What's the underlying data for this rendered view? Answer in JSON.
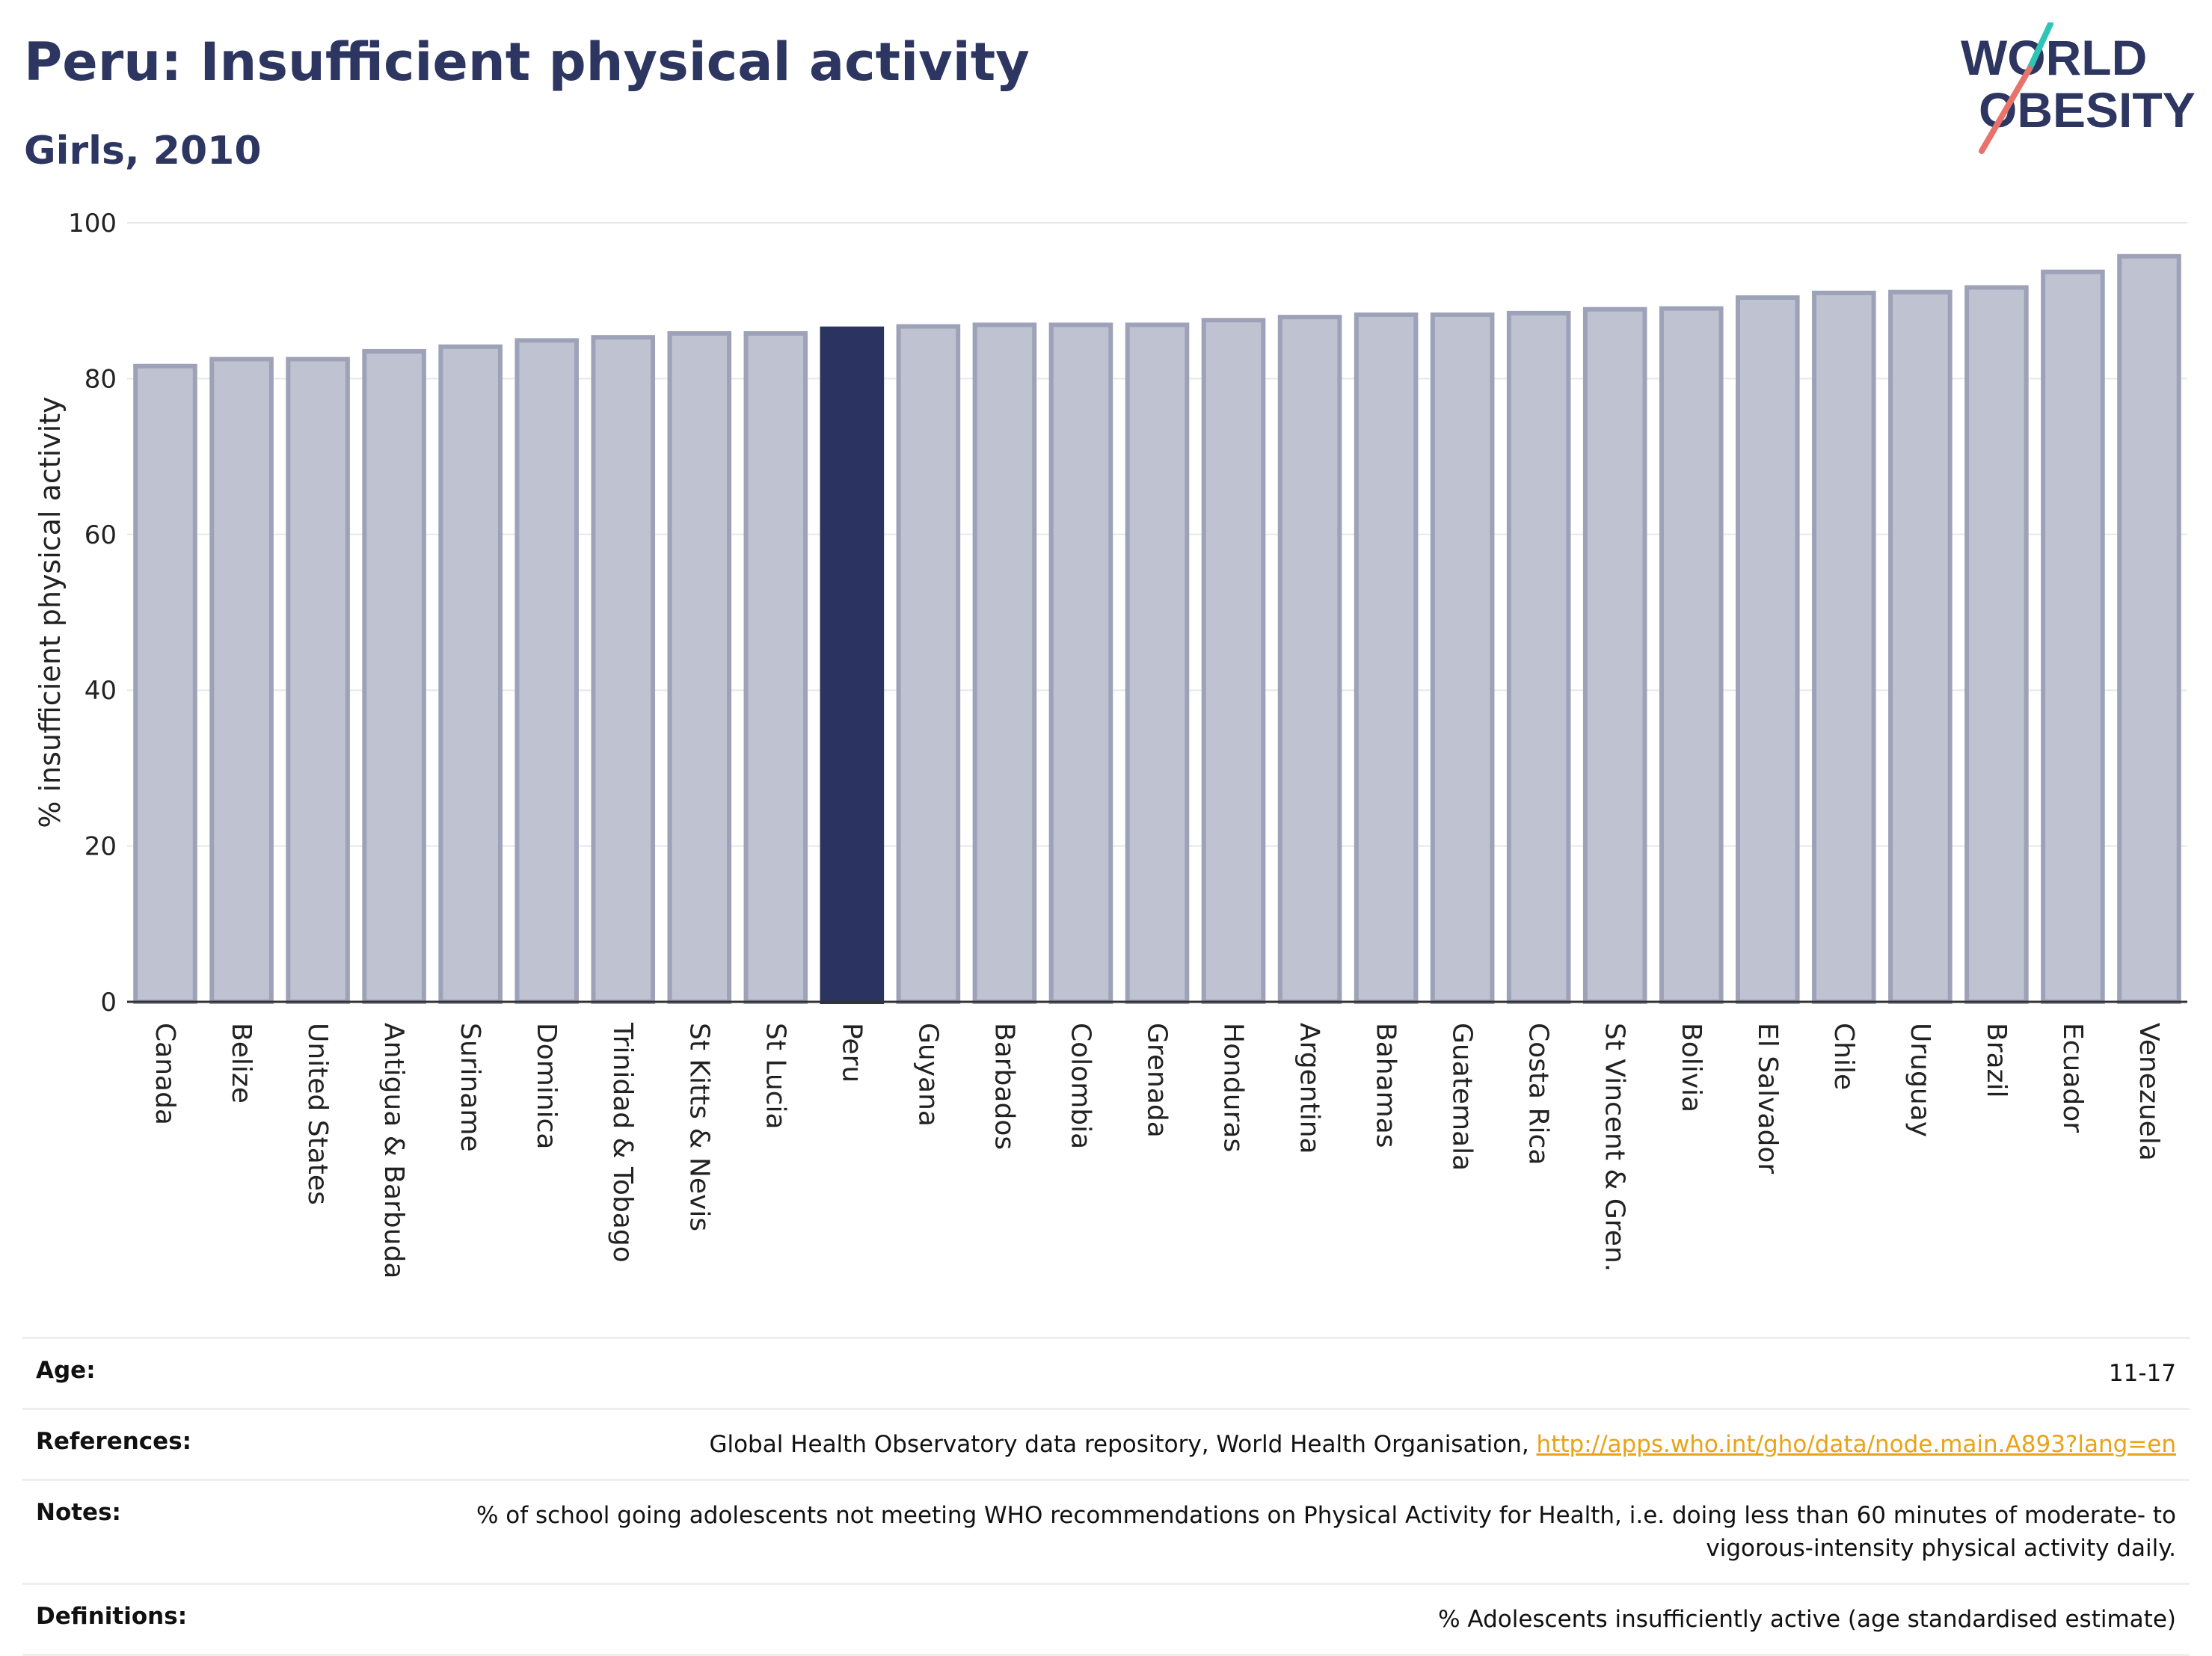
{
  "header": {
    "title": "Peru: Insufficient physical activity",
    "subtitle": "Girls, 2010",
    "logo_line1": "WORLD",
    "logo_line2": "OBESITY"
  },
  "colors": {
    "highlight": "#2b3461",
    "bar": "#bfc2d0",
    "bar_edge": "#9ea2b8",
    "title": "#2d3561",
    "logo_teal": "#2ec4b6",
    "logo_coral": "#e8736b",
    "link": "#e8a317"
  },
  "chart_data": {
    "type": "bar",
    "title": "Peru: Insufficient physical activity",
    "subtitle": "Girls, 2010",
    "xlabel": "",
    "ylabel": "% insufficient physical activity",
    "ylim": [
      0,
      100
    ],
    "yticks": [
      0,
      20,
      40,
      60,
      80,
      100
    ],
    "grid": true,
    "highlight": "Peru",
    "categories": [
      "Canada",
      "Belize",
      "United States",
      "Antigua & Barbuda",
      "Suriname",
      "Dominica",
      "Trinidad & Tobago",
      "St Kitts & Nevis",
      "St Lucia",
      "Peru",
      "Guyana",
      "Barbados",
      "Colombia",
      "Grenada",
      "Honduras",
      "Argentina",
      "Bahamas",
      "Guatemala",
      "Costa Rica",
      "St Vincent & Gren.",
      "Bolivia",
      "El Salvador",
      "Chile",
      "Uruguay",
      "Brazil",
      "Ecuador",
      "Venezuela"
    ],
    "values": [
      81.6,
      82.5,
      82.5,
      83.5,
      84.1,
      84.9,
      85.3,
      85.8,
      85.8,
      86.4,
      86.7,
      86.9,
      86.9,
      86.9,
      87.5,
      87.9,
      88.2,
      88.2,
      88.4,
      88.9,
      89.0,
      90.4,
      91.0,
      91.1,
      91.7,
      93.7,
      95.7
    ]
  },
  "meta": {
    "age_label": "Age:",
    "age_value": "11-17",
    "references_label": "References:",
    "references_text": "Global Health Observatory data repository, World Health Organisation, ",
    "references_link": "http://apps.who.int/gho/data/node.main.A893?lang=en",
    "notes_label": "Notes:",
    "notes_value": "% of school going adolescents not meeting WHO recommendations on Physical Activity for Health, i.e. doing less than 60 minutes of moderate- to vigorous-intensity physical activity daily.",
    "definitions_label": "Definitions:",
    "definitions_value": "% Adolescents insufficiently active (age standardised estimate)"
  }
}
